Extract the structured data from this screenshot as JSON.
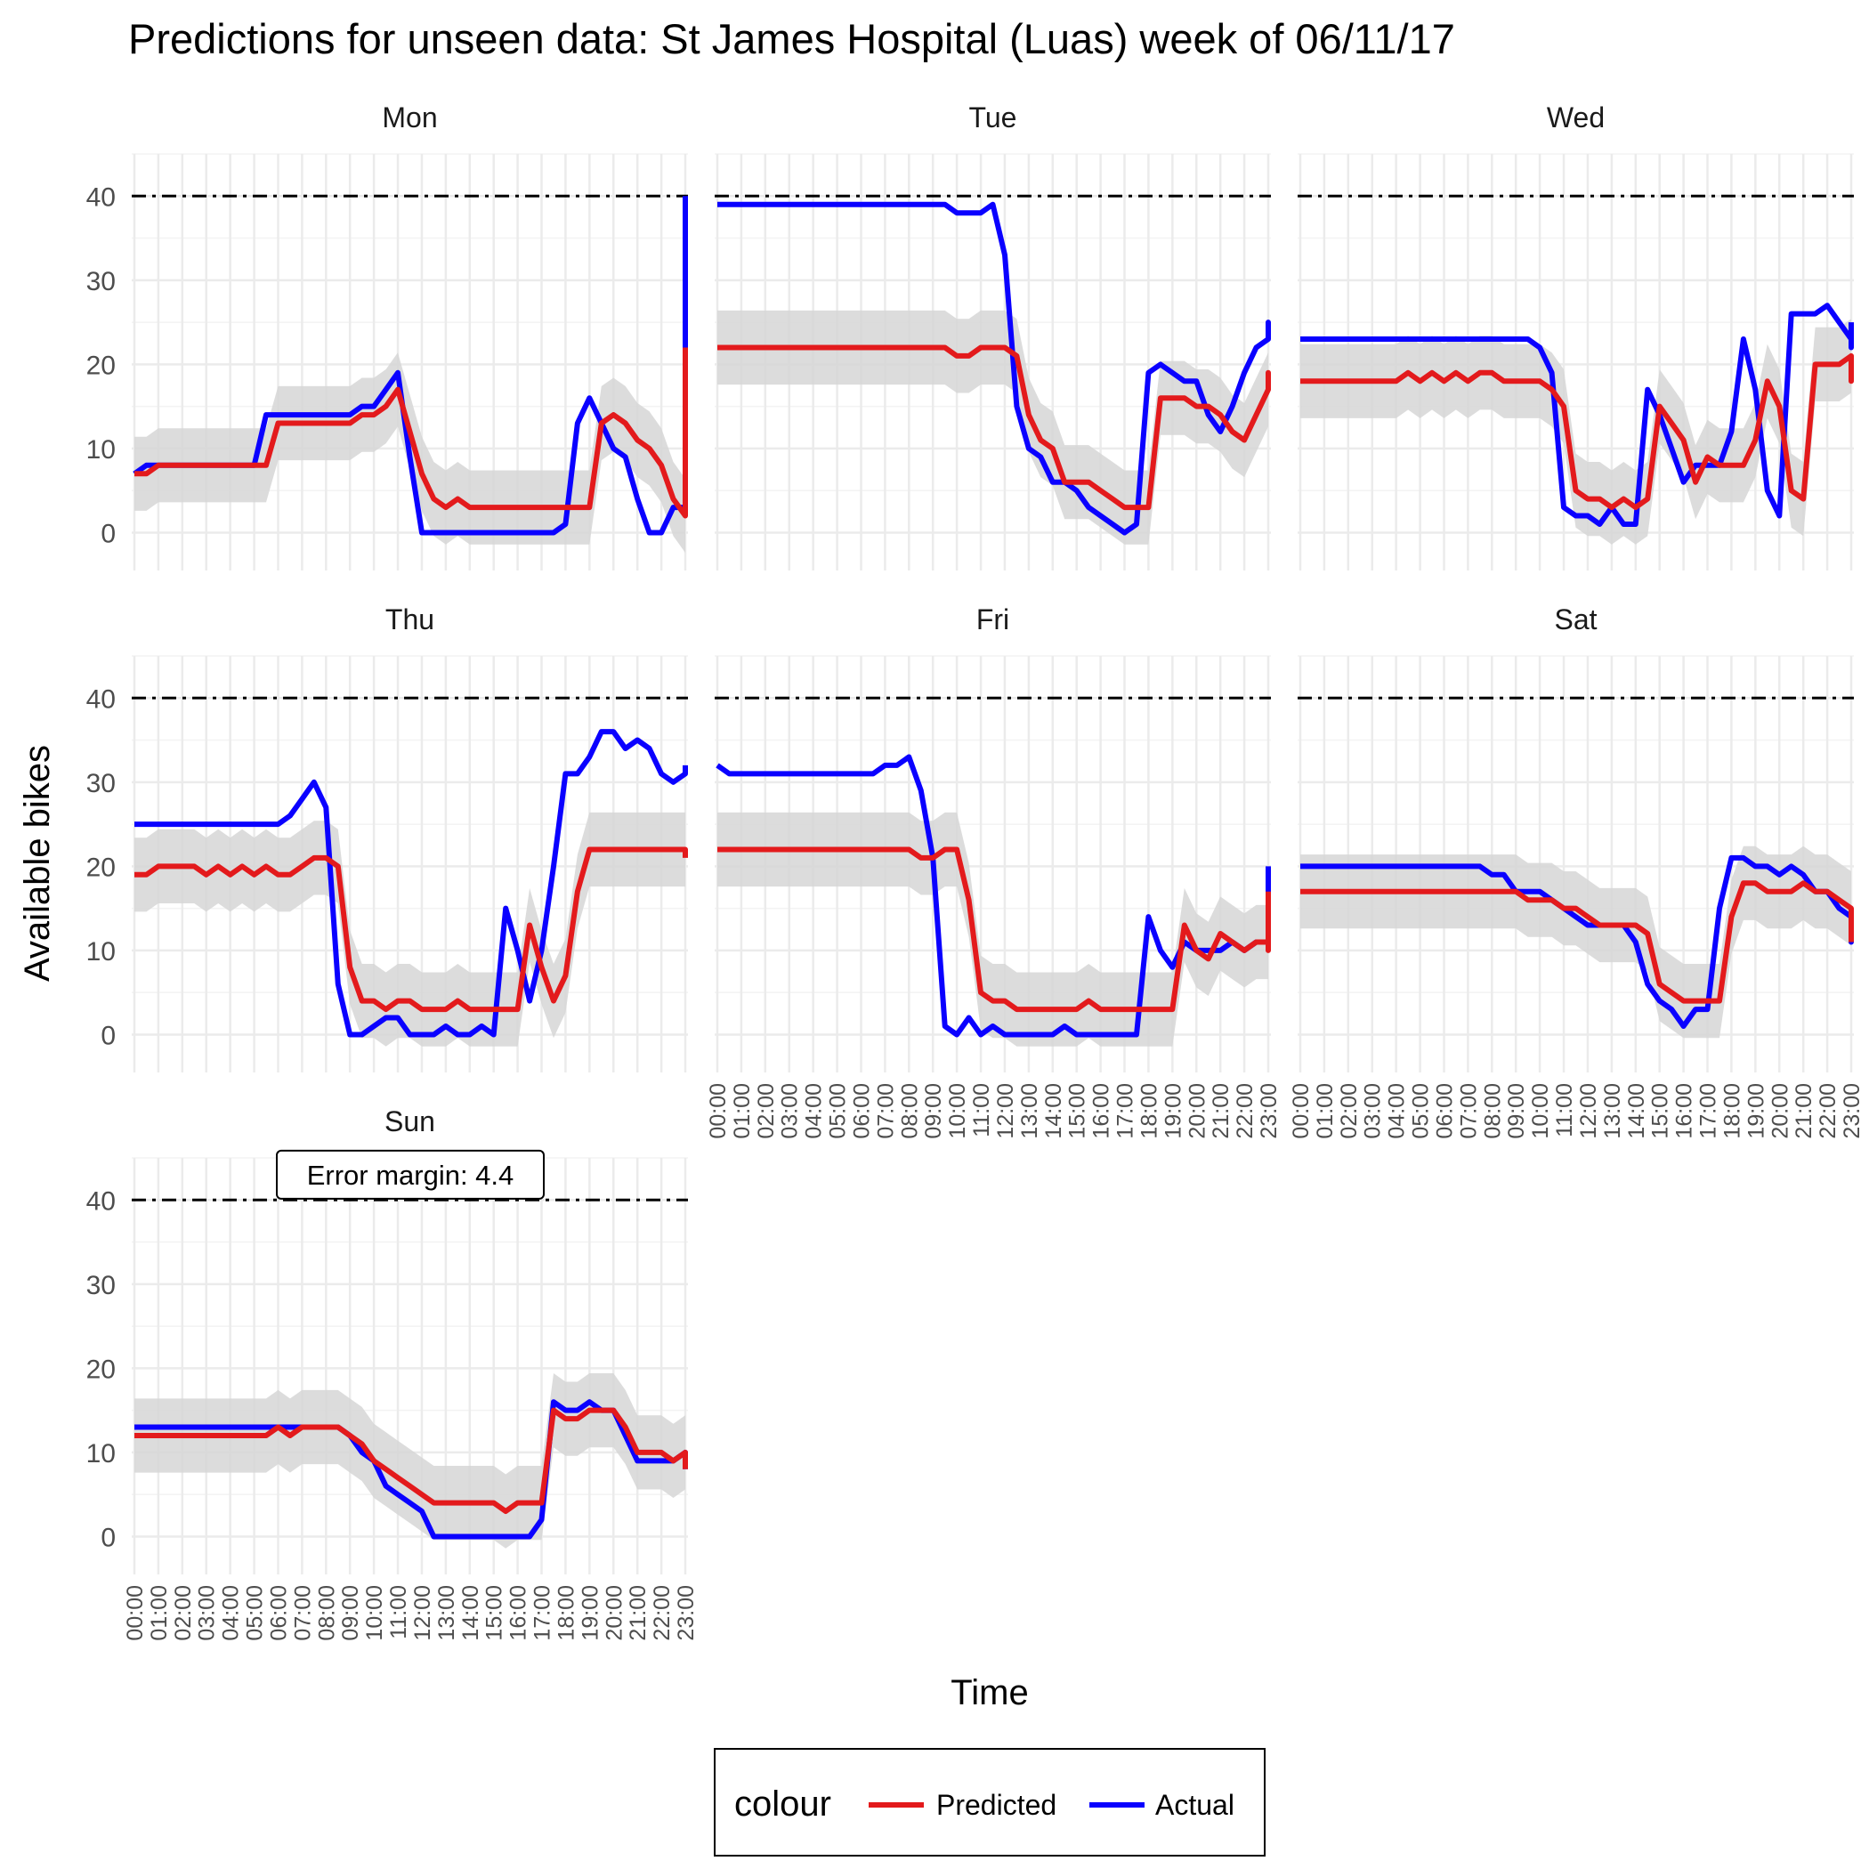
{
  "chart_data": {
    "type": "line",
    "title": "Predictions for unseen data: St James Hospital (Luas) week of 06/11/17",
    "xlabel": "Time",
    "ylabel": "Available bikes",
    "ylim": [
      -4.5,
      45
    ],
    "yticks": [
      0,
      10,
      20,
      30,
      40
    ],
    "capacity_line": 40,
    "x_ticks": [
      "00:00",
      "01:00",
      "02:00",
      "03:00",
      "04:00",
      "05:00",
      "06:00",
      "07:00",
      "08:00",
      "09:00",
      "10:00",
      "11:00",
      "12:00",
      "13:00",
      "14:00",
      "15:00",
      "16:00",
      "17:00",
      "18:00",
      "19:00",
      "20:00",
      "21:00",
      "22:00",
      "23:00"
    ],
    "x_step_hours": 0.5,
    "band_half_width": 4.4,
    "annotation": "Error margin: 4.4",
    "legend": {
      "title": "colour",
      "position": "bottom",
      "items": [
        "Predicted",
        "Actual"
      ]
    },
    "colors": {
      "Predicted": "#e31a1c",
      "Actual": "#0a00ff",
      "band": "#d6d6d6",
      "reference": "#000000"
    },
    "panels": [
      {
        "day": "Mon",
        "predicted": [
          7,
          7,
          8,
          8,
          8,
          8,
          8,
          8,
          8,
          8,
          8,
          8,
          13,
          13,
          13,
          13,
          13,
          13,
          13,
          14,
          14,
          15,
          17,
          12,
          7,
          4,
          3,
          4,
          3,
          3,
          3,
          3,
          3,
          3,
          3,
          3,
          3,
          3,
          3,
          13,
          14,
          13,
          11,
          10,
          8,
          4,
          2,
          3,
          4,
          5,
          9,
          12,
          12,
          13,
          13,
          15,
          15,
          17,
          22,
          22,
          22,
          22
        ],
        "actual": [
          7,
          8,
          8,
          8,
          8,
          8,
          8,
          8,
          8,
          8,
          8,
          14,
          14,
          14,
          14,
          14,
          14,
          14,
          14,
          15,
          15,
          17,
          19,
          9,
          0,
          0,
          0,
          0,
          0,
          0,
          0,
          0,
          0,
          0,
          0,
          0,
          1,
          13,
          16,
          13,
          10,
          9,
          4,
          0,
          0,
          3,
          3,
          3,
          9,
          13,
          13,
          14,
          17,
          17,
          21,
          40,
          40,
          40,
          40,
          40,
          40,
          40
        ]
      },
      {
        "day": "Tue",
        "predicted": [
          22,
          22,
          22,
          22,
          22,
          22,
          22,
          22,
          22,
          22,
          22,
          22,
          22,
          22,
          22,
          22,
          22,
          22,
          22,
          22,
          21,
          21,
          22,
          22,
          22,
          21,
          14,
          11,
          10,
          6,
          6,
          6,
          5,
          4,
          3,
          3,
          3,
          16,
          16,
          16,
          15,
          15,
          14,
          12,
          11,
          14,
          17,
          18,
          18,
          19,
          19,
          19,
          19,
          19,
          19,
          19,
          19,
          19,
          18,
          18,
          18,
          18
        ],
        "actual": [
          39,
          39,
          39,
          39,
          39,
          39,
          39,
          39,
          39,
          39,
          39,
          39,
          39,
          39,
          39,
          39,
          39,
          39,
          39,
          39,
          38,
          38,
          38,
          39,
          33,
          15,
          10,
          9,
          6,
          6,
          5,
          3,
          2,
          1,
          0,
          1,
          19,
          20,
          19,
          18,
          18,
          14,
          12,
          15,
          19,
          22,
          23,
          24,
          24,
          24,
          24,
          25,
          24,
          23,
          23,
          23,
          23,
          23,
          23,
          23,
          23,
          23
        ]
      },
      {
        "day": "Wed",
        "predicted": [
          18,
          18,
          18,
          18,
          18,
          18,
          18,
          18,
          18,
          19,
          18,
          19,
          18,
          19,
          18,
          19,
          19,
          18,
          18,
          18,
          18,
          17,
          15,
          5,
          4,
          4,
          3,
          4,
          3,
          4,
          15,
          13,
          11,
          6,
          9,
          8,
          8,
          8,
          11,
          18,
          15,
          5,
          4,
          20,
          20,
          20,
          21,
          20,
          18,
          18,
          18,
          18,
          18,
          19,
          19,
          19,
          19,
          19,
          19,
          19,
          19,
          19
        ],
        "actual": [
          23,
          23,
          23,
          23,
          23,
          23,
          23,
          23,
          23,
          23,
          23,
          23,
          23,
          23,
          23,
          23,
          23,
          23,
          23,
          23,
          22,
          19,
          3,
          2,
          2,
          1,
          3,
          1,
          1,
          17,
          14,
          10,
          6,
          8,
          8,
          8,
          12,
          23,
          17,
          5,
          2,
          26,
          26,
          26,
          27,
          25,
          23,
          22,
          23,
          23,
          24,
          24,
          25,
          25,
          25,
          25,
          25,
          25,
          25,
          25,
          25,
          25
        ]
      },
      {
        "day": "Thu",
        "predicted": [
          19,
          19,
          20,
          20,
          20,
          20,
          19,
          20,
          19,
          20,
          19,
          20,
          19,
          19,
          20,
          21,
          21,
          20,
          8,
          4,
          4,
          3,
          4,
          4,
          3,
          3,
          3,
          4,
          3,
          3,
          3,
          3,
          3,
          13,
          8,
          4,
          7,
          17,
          22,
          22,
          22,
          22,
          22,
          22,
          22,
          22,
          22,
          21,
          21,
          21,
          21,
          21,
          21,
          21,
          21,
          21,
          21,
          21,
          21,
          21,
          21,
          21
        ],
        "actual": [
          25,
          25,
          25,
          25,
          25,
          25,
          25,
          25,
          25,
          25,
          25,
          25,
          25,
          26,
          28,
          30,
          27,
          6,
          0,
          0,
          1,
          2,
          2,
          0,
          0,
          0,
          1,
          0,
          0,
          1,
          0,
          15,
          10,
          4,
          10,
          20,
          31,
          31,
          33,
          36,
          36,
          34,
          35,
          34,
          31,
          30,
          31,
          32,
          32,
          32,
          32,
          32,
          32,
          32,
          32,
          32,
          32,
          32,
          32,
          32,
          32,
          32
        ]
      },
      {
        "day": "Fri",
        "predicted": [
          22,
          22,
          22,
          22,
          22,
          22,
          22,
          22,
          22,
          22,
          22,
          22,
          22,
          22,
          22,
          22,
          22,
          21,
          21,
          22,
          22,
          16,
          5,
          4,
          4,
          3,
          3,
          3,
          3,
          3,
          3,
          4,
          3,
          3,
          3,
          3,
          3,
          3,
          3,
          13,
          10,
          9,
          12,
          11,
          10,
          11,
          11,
          10,
          11,
          10,
          13,
          17,
          17,
          17,
          17,
          17,
          17,
          17,
          17,
          17,
          17,
          17
        ],
        "actual": [
          32,
          31,
          31,
          31,
          31,
          31,
          31,
          31,
          31,
          31,
          31,
          31,
          31,
          31,
          32,
          32,
          33,
          29,
          21,
          1,
          0,
          2,
          0,
          1,
          0,
          0,
          0,
          0,
          0,
          1,
          0,
          0,
          0,
          0,
          0,
          0,
          14,
          10,
          8,
          11,
          10,
          10,
          10,
          11,
          10,
          11,
          11,
          14,
          20,
          20,
          20,
          20,
          20,
          20,
          20,
          20,
          20,
          20,
          20,
          20,
          20,
          20
        ]
      },
      {
        "day": "Sat",
        "predicted": [
          17,
          17,
          17,
          17,
          17,
          17,
          17,
          17,
          17,
          17,
          17,
          17,
          17,
          17,
          17,
          17,
          17,
          17,
          17,
          16,
          16,
          16,
          15,
          15,
          14,
          13,
          13,
          13,
          13,
          12,
          6,
          5,
          4,
          4,
          4,
          4,
          14,
          18,
          18,
          17,
          17,
          17,
          18,
          17,
          17,
          16,
          15,
          14,
          14,
          13,
          11,
          11,
          11,
          11,
          11,
          11,
          11,
          11,
          11,
          11,
          11,
          11
        ],
        "actual": [
          20,
          20,
          20,
          20,
          20,
          20,
          20,
          20,
          20,
          20,
          20,
          20,
          20,
          20,
          20,
          20,
          19,
          19,
          17,
          17,
          17,
          16,
          15,
          14,
          13,
          13,
          13,
          13,
          11,
          6,
          4,
          3,
          1,
          3,
          3,
          15,
          21,
          21,
          20,
          20,
          19,
          20,
          19,
          17,
          17,
          15,
          14,
          14,
          11,
          11,
          11,
          13,
          13,
          13,
          13,
          13,
          13,
          13,
          13,
          13,
          13,
          13
        ]
      },
      {
        "day": "Sun",
        "predicted": [
          12,
          12,
          12,
          12,
          12,
          12,
          12,
          12,
          12,
          12,
          12,
          12,
          13,
          12,
          13,
          13,
          13,
          13,
          12,
          11,
          9,
          8,
          7,
          6,
          5,
          4,
          4,
          4,
          4,
          4,
          4,
          3,
          4,
          4,
          4,
          15,
          14,
          14,
          15,
          15,
          15,
          13,
          10,
          10,
          10,
          9,
          10,
          10,
          10,
          9,
          8,
          8,
          8,
          8,
          8,
          8,
          8,
          8,
          8,
          8,
          8,
          8
        ],
        "actual": [
          13,
          13,
          13,
          13,
          13,
          13,
          13,
          13,
          13,
          13,
          13,
          13,
          13,
          13,
          13,
          13,
          13,
          13,
          12,
          10,
          9,
          6,
          5,
          4,
          3,
          0,
          0,
          0,
          0,
          0,
          0,
          0,
          0,
          0,
          2,
          16,
          15,
          15,
          16,
          15,
          15,
          12,
          9,
          9,
          9,
          9,
          10,
          10,
          9,
          8,
          8,
          8,
          8,
          8,
          8,
          8,
          8,
          8,
          8,
          8,
          8,
          8
        ]
      }
    ]
  }
}
